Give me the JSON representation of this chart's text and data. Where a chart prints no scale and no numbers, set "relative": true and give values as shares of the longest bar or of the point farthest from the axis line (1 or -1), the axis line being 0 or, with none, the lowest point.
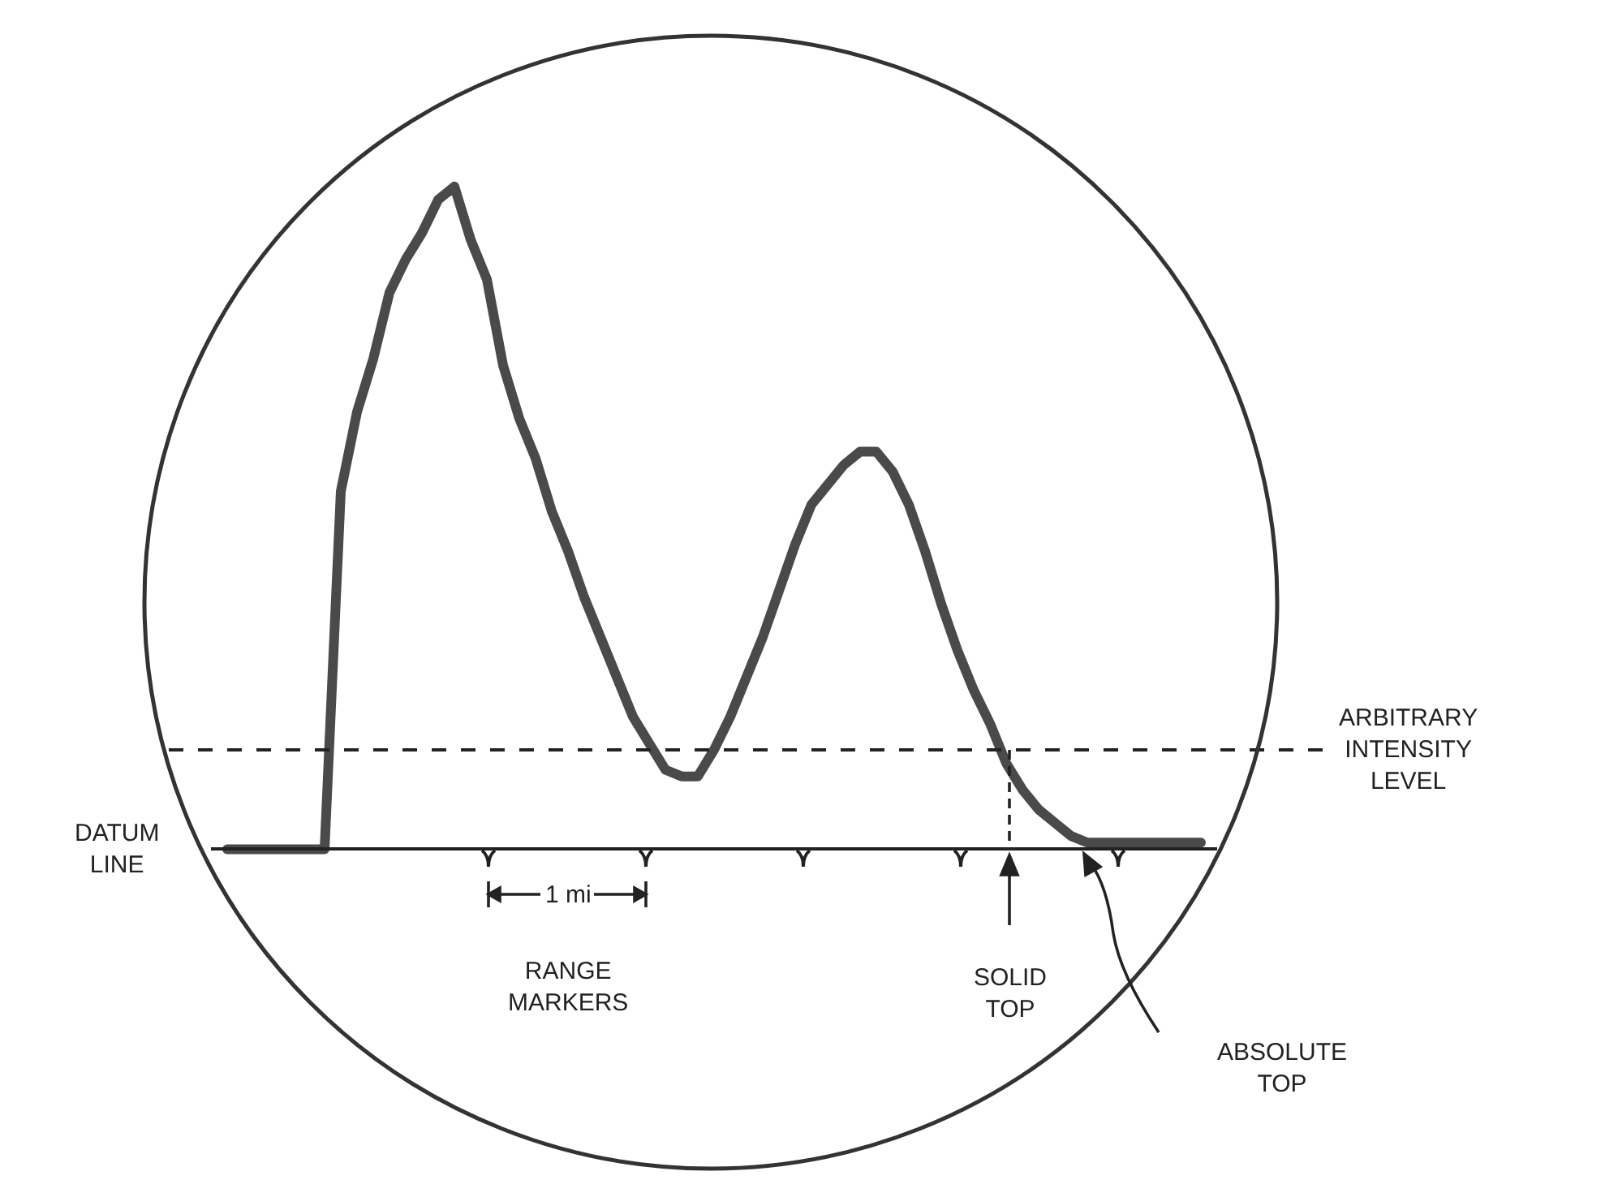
{
  "chart_data": {
    "type": "line",
    "relative": true,
    "line_style": "solid",
    "marker": "none",
    "categories": [
      null,
      null,
      null,
      null,
      null,
      null,
      null,
      null,
      null,
      null,
      null,
      null,
      null,
      null,
      null,
      null,
      null,
      null,
      null,
      null,
      null,
      null,
      null,
      null,
      null,
      null,
      null,
      null,
      null,
      null,
      null,
      null,
      null,
      null,
      null,
      null,
      null,
      null,
      null,
      null,
      null,
      null,
      null,
      null,
      null,
      null,
      null,
      null,
      null,
      null,
      null,
      null,
      null,
      null,
      null,
      null,
      null,
      null,
      null,
      null,
      null
    ],
    "series": [
      {
        "color": "#4a4a4a",
        "values": [
          0,
          0,
          0,
          0,
          0,
          0,
          0,
          0.54,
          0.66,
          0.74,
          0.84,
          0.89,
          0.93,
          0.98,
          1.0,
          0.92,
          0.86,
          0.73,
          0.65,
          0.59,
          0.51,
          0.45,
          0.38,
          0.32,
          0.26,
          0.2,
          0.16,
          0.12,
          0.11,
          0.11,
          0.15,
          0.2,
          0.26,
          0.32,
          0.39,
          0.46,
          0.52,
          0.55,
          0.58,
          0.6,
          0.6,
          0.57,
          0.52,
          0.45,
          0.37,
          0.3,
          0.24,
          0.19,
          0.13,
          0.09,
          0.06,
          0.04,
          0.02,
          0.01,
          0.01,
          0.01,
          0.01,
          0.01,
          0.01,
          0.01,
          0.01
        ]
      }
    ],
    "ref_lines": [
      {
        "axis": "y",
        "value": 0.15,
        "label": "ARBITRARY INTENSITY LEVEL",
        "line_style": "dashed",
        "color": "#222222"
      }
    ],
    "annotations": [
      "DATUM LINE",
      "1 mi",
      "RANGE MARKERS",
      "SOLID TOP",
      "ABSOLUTE TOP"
    ]
  }
}
